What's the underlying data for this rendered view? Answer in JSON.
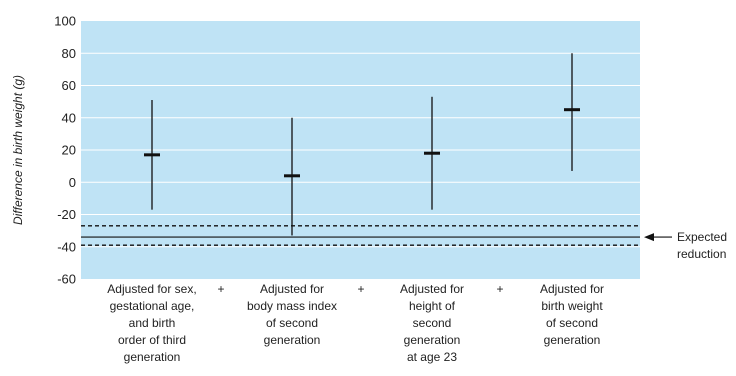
{
  "chart_data": {
    "type": "errorbar",
    "ylabel": "Difference in birth weight (g)",
    "ylim": [
      -60,
      100
    ],
    "y_ticks": [
      "100",
      "80",
      "60",
      "40",
      "20",
      "0",
      "-20",
      "-40",
      "-60"
    ],
    "y_tick_values": [
      100,
      80,
      60,
      40,
      20,
      0,
      -20,
      -40,
      -60
    ],
    "grid": true,
    "background_color": "#bfe3f5",
    "grid_color": "#ffffff",
    "categories": [
      [
        "Adjusted for sex,",
        "gestational age,",
        "and birth",
        "order of third",
        "generation"
      ],
      [
        "Adjusted for",
        "body mass index",
        "of second",
        "generation"
      ],
      [
        "Adjusted for",
        "height of",
        "second",
        "generation",
        "at age 23"
      ],
      [
        "Adjusted for",
        "birth weight",
        "of second",
        "generation"
      ]
    ],
    "separators": [
      "+",
      "+",
      "+"
    ],
    "estimates": [
      17,
      4,
      18,
      45
    ],
    "lower": [
      -17,
      -33,
      -17,
      7
    ],
    "upper": [
      51,
      40,
      53,
      80
    ],
    "reference": {
      "label": [
        "Expected",
        "reduction"
      ],
      "value": -34,
      "lower": -39,
      "upper": -27
    }
  }
}
